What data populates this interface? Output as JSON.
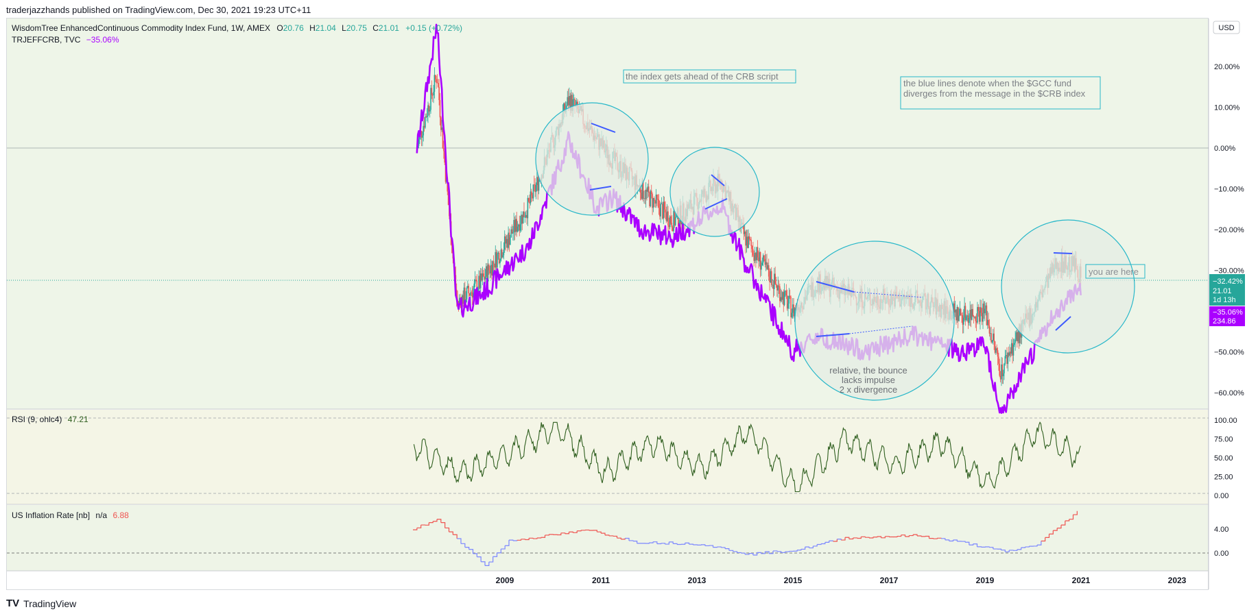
{
  "header": {
    "publisher_line": "traderjazzhands published on TradingView.com, Dec 30, 2021 19:23 UTC+11"
  },
  "main_pane": {
    "symbol": "WisdomTree EnhancedContinuous Commodity Index Fund, 1W, AMEX",
    "ohlc": {
      "o_label": "O",
      "o": "20.76",
      "h_label": "H",
      "h": "21.04",
      "l_label": "L",
      "l": "20.75",
      "c_label": "C",
      "c": "21.01",
      "change": "+0.15 (+0.72%)"
    },
    "compare_symbol": "TRJEFFCRB, TVC",
    "compare_change": "−35.06%",
    "currency_button": "USD",
    "y_axis_ticks": [
      "20.00%",
      "10.00%",
      "0.00%",
      "−10.00%",
      "−20.00%",
      "−30.00%",
      "−40.00%",
      "−50.00%",
      "−60.00%"
    ],
    "price_tag": {
      "pct": "−32.42%",
      "price": "21.01",
      "countdown": "1d 13h"
    },
    "compare_tag": {
      "pct": "−35.06%",
      "price": "234.86"
    }
  },
  "annotations": {
    "top_note": "the index gets ahead of the CRB script",
    "blue_lines_note": "the blue lines denote when the $GCC fund diverges from the message in the $CRB index",
    "you_are_here": "you are here",
    "bounce_note_1": "relative, the bounce",
    "bounce_note_2": "lacks impulse",
    "bounce_note_3": "2 x divergence"
  },
  "rsi_pane": {
    "label": "RSI (9, ohlc4)",
    "value": "47.21",
    "y_axis_ticks": [
      "100.00",
      "75.00",
      "50.00",
      "25.00",
      "0.00"
    ]
  },
  "inflation_pane": {
    "label": "US Inflation Rate [nb]",
    "na": "n/a",
    "value": "6.88",
    "y_axis_ticks": [
      "4.00",
      "0.00"
    ]
  },
  "x_axis_ticks": [
    "2009",
    "2011",
    "2013",
    "2015",
    "2017",
    "2019",
    "2021",
    "2023"
  ],
  "footer": {
    "brand": "TradingView"
  },
  "colors": {
    "background": "#f0f5ea",
    "up_candle": "#26a69a",
    "down_candle": "#ef5350",
    "compare_line": "#aa00ff",
    "rsi_line": "#2e5e1e",
    "inflation_above": "#ef5350",
    "inflation_below": "#7b86ff",
    "circle": "#26b7c9",
    "divergence_line": "#3d5afe"
  },
  "chart_data": [
    {
      "type": "line",
      "title": "WisdomTree EnhancedContinuous Commodity Index Fund vs TRJEFFCRB (percent change)",
      "ylabel": "",
      "ylim": [
        -62,
        30
      ],
      "x": [
        "2008-02",
        "2008-07",
        "2008-12",
        "2009-06",
        "2010-06",
        "2011-04",
        "2011-11",
        "2012-03",
        "2012-10",
        "2013-06",
        "2014-06",
        "2014-12",
        "2015-12",
        "2016-06",
        "2017-06",
        "2018-06",
        "2019-06",
        "2019-12",
        "2020-04",
        "2020-06",
        "2021-01",
        "2021-06",
        "2021-11",
        "2021-12"
      ],
      "series": [
        {
          "name": "WisdomTree EnhancedContinuous Commodity Index Fund",
          "values": [
            0,
            18,
            -38,
            -33,
            -14,
            12,
            2,
            -3,
            -10,
            -18,
            -8,
            -22,
            -40,
            -33,
            -37,
            -37,
            -41,
            -40,
            -55,
            -50,
            -38,
            -28,
            -29,
            -32.42
          ]
        },
        {
          "name": "TRJEFFCRB",
          "values": [
            0,
            30,
            -40,
            -36,
            -24,
            2,
            -15,
            -12,
            -20,
            -22,
            -14,
            -28,
            -50,
            -46,
            -50,
            -46,
            -50,
            -48,
            -65,
            -62,
            -48,
            -40,
            -34,
            -35.06
          ]
        }
      ]
    },
    {
      "type": "line",
      "title": "RSI (9, ohlc4)",
      "ylim": [
        0,
        100
      ],
      "x": [
        "2008",
        "2009",
        "2010",
        "2011",
        "2012",
        "2013",
        "2014",
        "2015",
        "2016",
        "2017",
        "2018",
        "2019",
        "2020",
        "2021",
        "2021-12"
      ],
      "values": [
        65,
        30,
        55,
        92,
        30,
        70,
        35,
        85,
        10,
        75,
        40,
        70,
        15,
        85,
        47.21
      ]
    },
    {
      "type": "line",
      "title": "US Inflation Rate [nb]",
      "x": [
        "2008-01",
        "2008-07",
        "2009-07",
        "2010-01",
        "2011-09",
        "2012-09",
        "2014-01",
        "2015-01",
        "2016-01",
        "2017-01",
        "2018-07",
        "2019-06",
        "2020-05",
        "2021-01",
        "2021-11"
      ],
      "values": [
        4.0,
        5.5,
        -2.0,
        2.0,
        3.8,
        1.8,
        1.5,
        -0.2,
        0.5,
        2.5,
        2.9,
        1.8,
        0.2,
        1.4,
        6.88
      ]
    }
  ]
}
